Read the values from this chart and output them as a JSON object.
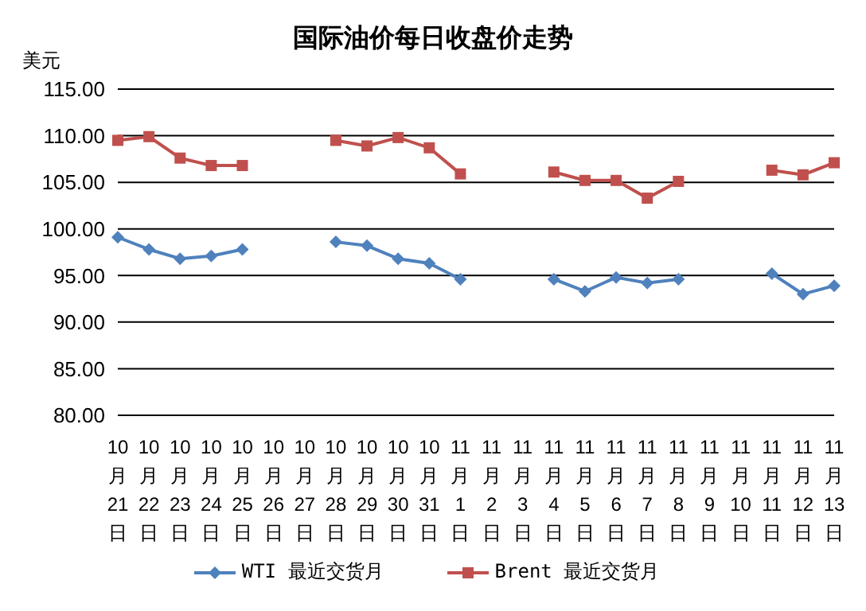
{
  "chart_data": {
    "type": "line",
    "title": "国际油价每日收盘价走势",
    "ylabel": "美元",
    "categories": [
      "10月21日",
      "10月22日",
      "10月23日",
      "10月24日",
      "10月25日",
      "10月26日",
      "10月27日",
      "10月28日",
      "10月29日",
      "10月30日",
      "10月31日",
      "11月1日",
      "11月2日",
      "11月3日",
      "11月4日",
      "11月5日",
      "11月6日",
      "11月7日",
      "11月8日",
      "11月9日",
      "11月10日",
      "11月11日",
      "11月12日",
      "11月13日"
    ],
    "series": [
      {
        "name": "WTI 最近交货月",
        "color": "#4f81bd",
        "marker": "diamond",
        "values": [
          99.1,
          97.8,
          96.8,
          97.1,
          97.8,
          null,
          null,
          98.6,
          98.2,
          96.8,
          96.3,
          94.6,
          null,
          null,
          94.6,
          93.3,
          94.8,
          94.2,
          94.6,
          null,
          null,
          95.2,
          93.0,
          93.9
        ]
      },
      {
        "name": "Brent 最近交货月",
        "color": "#c0504d",
        "marker": "square",
        "values": [
          109.5,
          109.9,
          107.6,
          106.8,
          106.8,
          null,
          null,
          109.5,
          108.9,
          109.8,
          108.7,
          105.9,
          null,
          null,
          106.1,
          105.2,
          105.2,
          103.3,
          105.1,
          null,
          null,
          106.3,
          105.8,
          107.1
        ]
      }
    ],
    "ylim": [
      80,
      115
    ],
    "yticks": [
      {
        "value": 80,
        "label": "80.00"
      },
      {
        "value": 85,
        "label": "85.00"
      },
      {
        "value": 90,
        "label": "90.00"
      },
      {
        "value": 95,
        "label": "95.00"
      },
      {
        "value": 100,
        "label": "100.00"
      },
      {
        "value": 105,
        "label": "105.00"
      },
      {
        "value": 110,
        "label": "110.00"
      },
      {
        "value": 115,
        "label": "115.00"
      }
    ],
    "grid": "y",
    "legend": "bottom",
    "line_style": "solid"
  }
}
